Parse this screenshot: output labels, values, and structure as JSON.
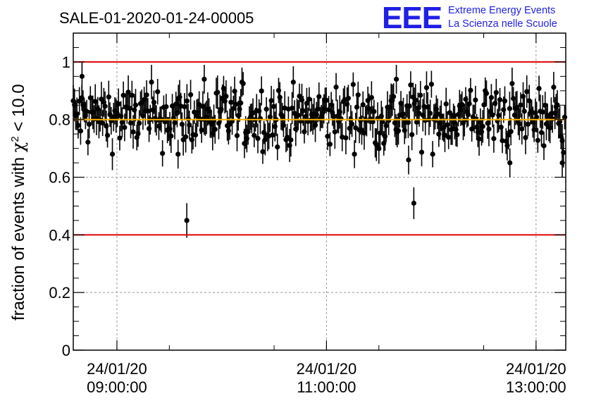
{
  "chart_data": {
    "type": "scatter",
    "title": "SALE-01-2020-01-24-00005",
    "ylabel_main": "fraction of events with ",
    "ylabel_chi": "χ",
    "ylabel_sup": "2",
    "ylabel_tail": " < 10.0",
    "xlabel": "",
    "ylim": [
      0,
      1.1
    ],
    "xlim": [
      "24/01/20 08:35:00",
      "24/01/20 13:17:00"
    ],
    "yticks": [
      {
        "value": 0,
        "label": "0"
      },
      {
        "value": 0.2,
        "label": "0.2"
      },
      {
        "value": 0.4,
        "label": "0.4"
      },
      {
        "value": 0.6,
        "label": "0.6"
      },
      {
        "value": 0.8,
        "label": "0.8"
      },
      {
        "value": 1.0,
        "label": "1"
      }
    ],
    "xticks": [
      {
        "time": "24/01/20 09:00:00",
        "date": "24/01/20",
        "clock": "09:00:00"
      },
      {
        "time": "24/01/20 11:00:00",
        "date": "24/01/20",
        "clock": "11:00:00"
      },
      {
        "time": "24/01/20 13:00:00",
        "date": "24/01/20",
        "clock": "13:00:00"
      }
    ],
    "reference_lines": [
      {
        "y": 1.0,
        "color": "#e00000"
      },
      {
        "y": 0.4,
        "color": "#e00000"
      },
      {
        "y": 0.8,
        "color": "#ffb000"
      }
    ],
    "grid": true,
    "marker_color": "#000000",
    "notable_points": [
      {
        "time": "24/01/20 09:40:00",
        "y": 0.45,
        "err": 0.06
      },
      {
        "time": "24/01/20 11:50:00",
        "y": 0.51,
        "err": 0.055
      },
      {
        "time": "24/01/20 11:47:00",
        "y": 0.66,
        "err": 0.05
      },
      {
        "time": "24/01/20 12:45:00",
        "y": 0.65,
        "err": 0.05
      },
      {
        "time": "24/01/20 09:35:00",
        "y": 0.68,
        "err": 0.05
      },
      {
        "time": "24/01/20 08:40:00",
        "y": 0.95,
        "err": 0.05
      },
      {
        "time": "24/01/20 09:50:00",
        "y": 0.94,
        "err": 0.05
      },
      {
        "time": "24/01/20 11:40:00",
        "y": 0.94,
        "err": 0.05
      },
      {
        "time": "24/01/20 13:15:00",
        "y": 0.65,
        "err": 0.05
      }
    ],
    "bulk": {
      "start": "24/01/20 08:35:00",
      "end": "24/01/20 13:17:00",
      "step_minutes": 0.7,
      "mean": 0.81,
      "spread": 0.06,
      "err": 0.05
    }
  },
  "logo": {
    "letters": "EEE",
    "line1": "Extreme Energy Events",
    "line2": "La Scienza nelle Scuole",
    "color": "#1f1fe6"
  }
}
